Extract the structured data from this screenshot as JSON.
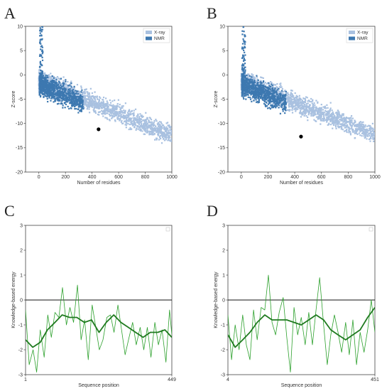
{
  "colors": {
    "xray": "#a9c1e0",
    "nmr": "#3d78b0",
    "energy_thin": "#2ca02c",
    "energy_thick": "#1f7a1f",
    "marker": "#000000"
  },
  "chart_data": [
    {
      "panel": "A",
      "type": "scatter",
      "xlabel": "Number of residues",
      "ylabel": "Z-score",
      "xlim": [
        -100,
        1000
      ],
      "ylim": [
        -20,
        10
      ],
      "xticks": [
        0,
        200,
        400,
        600,
        800,
        1000
      ],
      "yticks": [
        -20,
        -15,
        -10,
        -5,
        0,
        5,
        10
      ],
      "grid": false,
      "legend": "top-right",
      "series": [
        {
          "name": "X-ray"
        },
        {
          "name": "NMR"
        }
      ],
      "highlight": {
        "x": 449,
        "y": -11.2
      }
    },
    {
      "panel": "B",
      "type": "scatter",
      "xlabel": "Number of residues",
      "ylabel": "Z-score",
      "xlim": [
        -100,
        1000
      ],
      "ylim": [
        -20,
        10
      ],
      "xticks": [
        0,
        200,
        400,
        600,
        800,
        1000
      ],
      "yticks": [
        -20,
        -15,
        -10,
        -5,
        0,
        5,
        10
      ],
      "grid": false,
      "legend": "top-right",
      "series": [
        {
          "name": "X-ray"
        },
        {
          "name": "NMR"
        }
      ],
      "highlight": {
        "x": 447,
        "y": -12.7
      }
    },
    {
      "panel": "C",
      "type": "line",
      "xlabel": "Sequence position",
      "ylabel": "Knowledge-based energy",
      "xlim": [
        1,
        449
      ],
      "ylim": [
        -3,
        3
      ],
      "xticks": [
        1,
        449
      ],
      "yticks": [
        -3,
        -2,
        -1,
        0,
        1,
        2,
        3
      ],
      "zero_line": 0,
      "series": [
        {
          "key": "window_small",
          "x": [
            1,
            12,
            24,
            35,
            46,
            58,
            69,
            80,
            91,
            103,
            114,
            126,
            137,
            148,
            160,
            171,
            182,
            193,
            205,
            216,
            227,
            238,
            250,
            261,
            272,
            284,
            295,
            306,
            318,
            329,
            340,
            352,
            363,
            374,
            385,
            397,
            408,
            419,
            431,
            442,
            449
          ],
          "values": [
            -0.4,
            -2.6,
            -2.0,
            -2.9,
            -1.2,
            -2.3,
            -0.6,
            -1.5,
            -0.5,
            -0.7,
            0.5,
            -1.0,
            -0.3,
            -0.9,
            0.6,
            -1.6,
            -0.8,
            -2.4,
            -0.2,
            -1.1,
            -2.0,
            -1.6,
            -0.7,
            -0.6,
            -1.3,
            -0.2,
            -1.2,
            -2.2,
            -1.5,
            -0.9,
            -1.8,
            -1.1,
            -2.0,
            -1.1,
            -2.3,
            -0.9,
            -1.8,
            -1.2,
            -2.5,
            -0.4,
            -1.4
          ]
        },
        {
          "key": "window_large",
          "x": [
            1,
            23,
            46,
            68,
            91,
            113,
            136,
            158,
            181,
            203,
            226,
            248,
            271,
            293,
            316,
            338,
            361,
            383,
            406,
            428,
            449
          ],
          "values": [
            -1.6,
            -1.9,
            -1.7,
            -1.2,
            -0.9,
            -0.6,
            -0.7,
            -0.7,
            -0.9,
            -0.8,
            -1.3,
            -0.9,
            -0.6,
            -0.9,
            -1.1,
            -1.3,
            -1.5,
            -1.3,
            -1.3,
            -1.2,
            -1.5
          ]
        }
      ]
    },
    {
      "panel": "D",
      "type": "line",
      "xlabel": "Sequence position",
      "ylabel": "Knowledge-based energy",
      "xlim": [
        4,
        451
      ],
      "ylim": [
        -3,
        3
      ],
      "xticks": [
        4,
        451
      ],
      "yticks": [
        -3,
        -2,
        -1,
        0,
        1,
        2,
        3
      ],
      "zero_line": 0,
      "series": [
        {
          "key": "window_small",
          "x": [
            4,
            15,
            26,
            38,
            49,
            60,
            71,
            82,
            93,
            105,
            116,
            127,
            138,
            149,
            160,
            172,
            183,
            194,
            205,
            216,
            227,
            239,
            250,
            261,
            272,
            283,
            295,
            306,
            317,
            328,
            339,
            350,
            362,
            373,
            384,
            395,
            406,
            418,
            429,
            440,
            451
          ],
          "values": [
            -0.6,
            -2.4,
            -1.0,
            -2.0,
            -0.6,
            -1.8,
            -2.4,
            -0.4,
            -1.6,
            -0.3,
            -0.4,
            1.0,
            -0.9,
            -1.4,
            -0.5,
            0.1,
            -1.5,
            -2.9,
            -0.3,
            -1.4,
            -0.7,
            -1.8,
            -0.5,
            -1.8,
            -0.4,
            0.9,
            -1.0,
            -2.6,
            -1.4,
            -0.6,
            -1.3,
            -2.1,
            -0.9,
            -2.2,
            -0.8,
            -2.6,
            -1.3,
            -2.1,
            -1.2,
            0.0,
            -1.3
          ]
        },
        {
          "key": "window_large",
          "x": [
            4,
            26,
            49,
            71,
            93,
            116,
            138,
            160,
            183,
            205,
            227,
            250,
            272,
            295,
            317,
            339,
            362,
            384,
            406,
            429,
            451
          ],
          "values": [
            -1.4,
            -1.9,
            -1.6,
            -1.3,
            -0.9,
            -0.6,
            -0.8,
            -0.8,
            -0.8,
            -0.9,
            -1.0,
            -0.8,
            -0.6,
            -0.8,
            -1.2,
            -1.4,
            -1.6,
            -1.4,
            -1.2,
            -0.7,
            -0.3
          ]
        }
      ]
    }
  ]
}
